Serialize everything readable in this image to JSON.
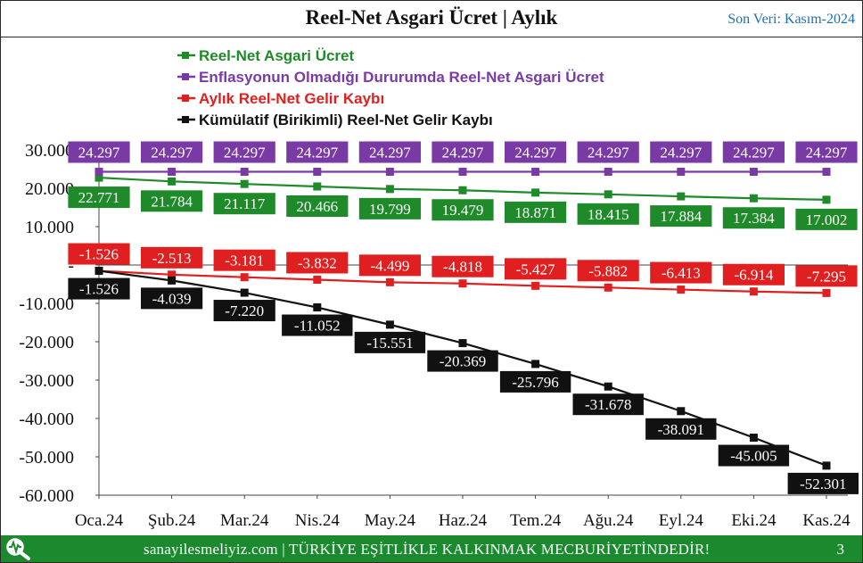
{
  "header": {
    "title": "Reel-Net Asgari Ücret | Aylık",
    "last_data": "Son Veri: Kasım-2024"
  },
  "footer": {
    "site": "sanayilesmeliyiz.com | TÜRKİYE EŞİTLİKLE KALKINMAK MECBURİYETİNDEDİR!",
    "page": "3",
    "logo_icon": "magnifier-pulse-icon"
  },
  "chart_data": {
    "type": "line",
    "title": "Reel-Net Asgari Ücret | Aylık",
    "categories": [
      "Oca.24",
      "Şub.24",
      "Mar.24",
      "Nis.24",
      "May.24",
      "Haz.24",
      "Tem.24",
      "Ağu.24",
      "Eyl.24",
      "Eki.24",
      "Kas.24"
    ],
    "ylim": [
      -60000,
      30000
    ],
    "yticks": [
      30000,
      20000,
      10000,
      0,
      -10000,
      -20000,
      -30000,
      -40000,
      -50000,
      -60000
    ],
    "ytick_labels": [
      "30.000",
      "20.000",
      "10.000",
      "-",
      "-10.000",
      "-20.000",
      "-30.000",
      "-40.000",
      "-50.000",
      "-60.000"
    ],
    "grid": false,
    "legend_position": "top",
    "series": [
      {
        "name": "Reel-Net Asgari Ücret",
        "color": "#1e8a2a",
        "values": [
          22771,
          21784,
          21117,
          20466,
          19799,
          19479,
          18871,
          18415,
          17884,
          17384,
          17002
        ],
        "labels": [
          "22.771",
          "21.784",
          "21.117",
          "20.466",
          "19.799",
          "19.479",
          "18.871",
          "18.415",
          "17.884",
          "17.384",
          "17.002"
        ],
        "label_position": "below"
      },
      {
        "name": "Enflasyonun Olmadığı Dururumda Reel-Net Asgari Ücret",
        "color": "#7a3aa6",
        "values": [
          24297,
          24297,
          24297,
          24297,
          24297,
          24297,
          24297,
          24297,
          24297,
          24297,
          24297
        ],
        "labels": [
          "24.297",
          "24.297",
          "24.297",
          "24.297",
          "24.297",
          "24.297",
          "24.297",
          "24.297",
          "24.297",
          "24.297",
          "24.297"
        ],
        "label_position": "above"
      },
      {
        "name": "Aylık Reel-Net Gelir Kaybı",
        "color": "#e02020",
        "values": [
          -1526,
          -2513,
          -3181,
          -3832,
          -4499,
          -4818,
          -5427,
          -5882,
          -6413,
          -6914,
          -7295
        ],
        "labels": [
          "-1.526",
          "-2.513",
          "-3.181",
          "-3.832",
          "-4.499",
          "-4.818",
          "-5.427",
          "-5.882",
          "-6.413",
          "-6.914",
          "-7.295"
        ],
        "label_position": "above"
      },
      {
        "name": "Kümülatif (Birikimli) Reel-Net Gelir Kaybı",
        "color": "#111111",
        "values": [
          -1526,
          -4039,
          -7220,
          -11052,
          -15551,
          -20369,
          -25796,
          -31678,
          -38091,
          -45005,
          -52301
        ],
        "labels": [
          "-1.526",
          "-4.039",
          "-7.220",
          "-11.052",
          "-15.551",
          "-20.369",
          "-25.796",
          "-31.678",
          "-38.091",
          "-45.005",
          "-52.301"
        ],
        "label_position": "below"
      }
    ]
  }
}
